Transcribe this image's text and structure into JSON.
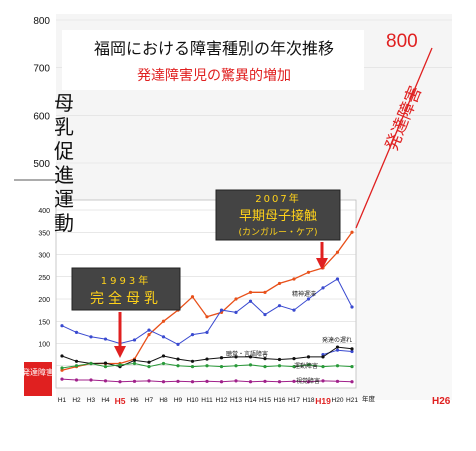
{
  "chart_data": {
    "type": "line",
    "title": "福岡における障害種別の年次推移",
    "subtitle": "発達障害児の驚異的増加",
    "upper_y_ticks": [
      "800",
      "700",
      "600",
      "500"
    ],
    "lower_y_ticks": [
      "400",
      "350",
      "300",
      "250",
      "200",
      "150",
      "100",
      "50",
      "0"
    ],
    "x": [
      "H1",
      "H2",
      "H3",
      "H4",
      "H5",
      "H6",
      "H7",
      "H8",
      "H9",
      "H10",
      "H11",
      "H12",
      "H13",
      "H14",
      "H15",
      "H16",
      "H17",
      "H18",
      "H19",
      "H20",
      "H21"
    ],
    "x_labels": [
      "H1",
      "H2",
      "H3",
      "H4",
      "H5",
      "H6",
      "H7",
      "H8",
      "H9",
      "H10",
      "H11",
      "H12",
      "H13",
      "H14",
      "H15",
      "H16",
      "H17",
      "H18",
      "H19",
      "H20",
      "H21"
    ],
    "x_extra_label": "年度",
    "x_far_label": "H26",
    "highlight_x": [
      "H5",
      "H19"
    ],
    "series": [
      {
        "name": "発達障害",
        "color": "#e8501a",
        "values": [
          40,
          48,
          55,
          55,
          55,
          65,
          120,
          150,
          175,
          205,
          160,
          170,
          200,
          215,
          215,
          235,
          245,
          260,
          270,
          305,
          350
        ]
      },
      {
        "name": "精神遅滞",
        "color": "#3a4ad0",
        "values": [
          140,
          125,
          115,
          110,
          100,
          108,
          130,
          115,
          98,
          120,
          125,
          175,
          170,
          195,
          165,
          185,
          175,
          200,
          225,
          245,
          182
        ]
      },
      {
        "name": "発達の遅れ",
        "color": "#3a4ad0",
        "values": [
          null,
          null,
          null,
          null,
          null,
          null,
          null,
          null,
          null,
          null,
          null,
          null,
          null,
          null,
          null,
          null,
          null,
          null,
          75,
          85,
          82
        ]
      },
      {
        "name": "聴覚・言語障害",
        "color": "#111111",
        "values": [
          72,
          60,
          55,
          56,
          48,
          62,
          58,
          72,
          65,
          60,
          65,
          68,
          70,
          70,
          66,
          64,
          66,
          70,
          70,
          92,
          88
        ]
      },
      {
        "name": "運動障害",
        "color": "#2a9a3a",
        "values": [
          45,
          50,
          55,
          48,
          52,
          55,
          48,
          55,
          50,
          48,
          50,
          48,
          50,
          52,
          48,
          50,
          48,
          52,
          48,
          50,
          48
        ]
      },
      {
        "name": "視覚障害",
        "color": "#a0208a",
        "values": [
          20,
          18,
          18,
          16,
          14,
          15,
          16,
          14,
          15,
          14,
          15,
          14,
          16,
          14,
          15,
          14,
          15,
          14,
          16,
          15,
          14
        ]
      }
    ],
    "extrapolation": {
      "label": "発達障害",
      "value": "800",
      "color": "#e02020"
    },
    "annotations": [
      {
        "year": "1993年",
        "text": "完全母乳"
      },
      {
        "year": "2007年",
        "text": "早期母子接触",
        "sub": "(カンガルー・ケア)"
      }
    ],
    "side_label": "母乳促進運動",
    "left_badge": "発達障害"
  }
}
